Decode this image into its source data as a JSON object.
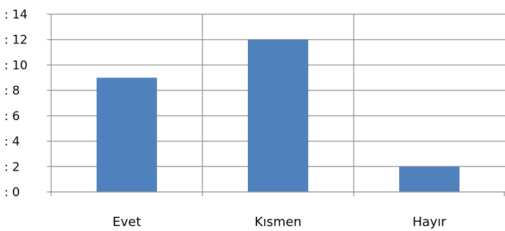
{
  "chart_data": {
    "type": "bar",
    "categories": [
      "Evet",
      "Kısmen",
      "Hayır"
    ],
    "values": [
      9,
      12,
      2
    ],
    "title": "",
    "xlabel": "",
    "ylabel": "",
    "ylim": [
      0,
      14
    ],
    "yticks": [
      0,
      2,
      4,
      6,
      8,
      10,
      12,
      14
    ],
    "ytick_labels": [
      ": 0",
      ": 2",
      ": 4",
      ": 6",
      ": 8",
      ": 10",
      ": 12",
      ": 14"
    ],
    "grid": {
      "horizontal": true,
      "vertical": true
    },
    "legend": "none",
    "bar_color": "#4f81bd",
    "grid_color": "#8c8c8c"
  }
}
